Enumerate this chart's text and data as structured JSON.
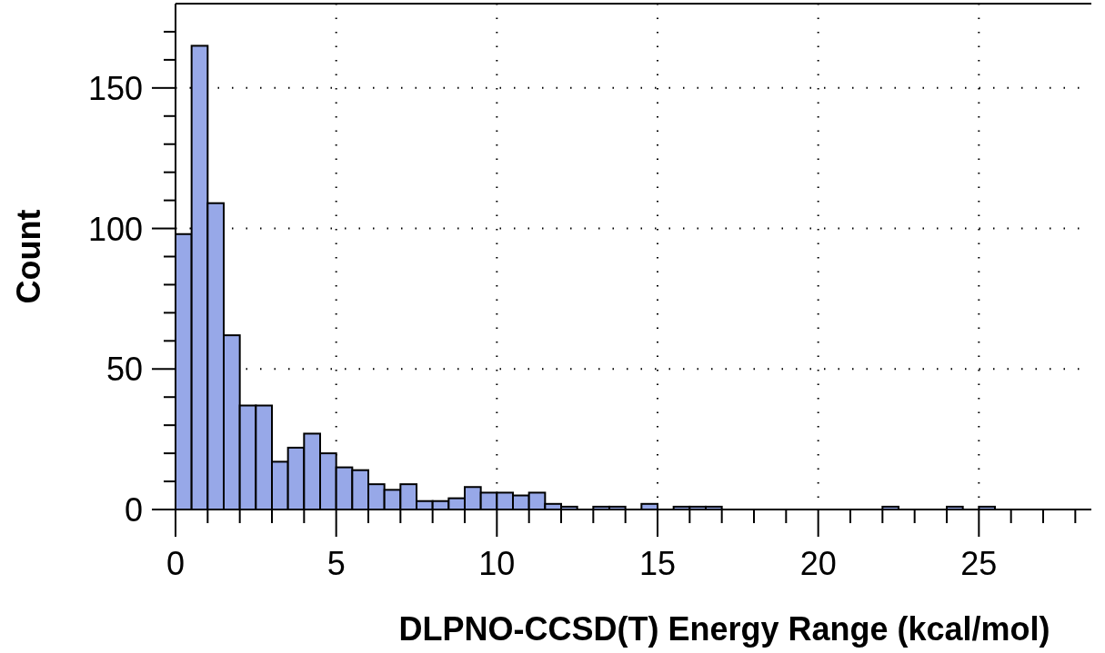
{
  "chart_data": {
    "type": "histogram",
    "xlabel": "DLPNO-CCSD(T) Energy Range (kcal/mol)",
    "ylabel": "Count",
    "color": "#97a8e8",
    "bins": [
      0,
      0.5,
      1,
      1.5,
      2,
      2.5,
      3,
      3.5,
      4,
      4.5,
      5,
      5.5,
      6,
      6.5,
      7,
      7.5,
      8,
      8.5,
      9,
      9.5,
      10,
      10.5,
      11,
      11.5,
      12,
      12.5,
      13,
      13.5,
      14,
      14.5,
      15,
      15.5,
      16,
      16.5,
      17,
      17.5,
      18,
      18.5,
      19,
      19.5,
      20,
      20.5,
      21,
      21.5,
      22,
      22.5,
      23,
      23.5,
      24,
      24.5,
      25,
      25.5,
      26,
      26.5,
      27,
      27.5,
      28,
      28.5
    ],
    "values": [
      98,
      165,
      109,
      62,
      37,
      37,
      17,
      22,
      27,
      20,
      15,
      14,
      9,
      7,
      9,
      3,
      3,
      4,
      8,
      6,
      6,
      5,
      6,
      2,
      1,
      0,
      1,
      1,
      0,
      2,
      0,
      1,
      1,
      1,
      0,
      0,
      0,
      0,
      0,
      0,
      0,
      0,
      0,
      0,
      1,
      0,
      0,
      0,
      1,
      0,
      1,
      0,
      0,
      0,
      0,
      0,
      0
    ],
    "xlim": [
      0,
      28.5
    ],
    "xticks": [
      0,
      {
        "value": 1,
        "label": null
      },
      {
        "value": 2,
        "label": null
      },
      {
        "value": 3,
        "label": null
      },
      {
        "value": 4,
        "label": null
      },
      5,
      {
        "value": 6,
        "label": null
      },
      {
        "value": 7,
        "label": null
      },
      {
        "value": 8,
        "label": null
      },
      {
        "value": 9,
        "label": null
      },
      10,
      {
        "value": 11,
        "label": null
      },
      {
        "value": 12,
        "label": null
      },
      {
        "value": 13,
        "label": null
      },
      {
        "value": 14,
        "label": null
      },
      15,
      {
        "value": 16,
        "label": null
      },
      {
        "value": 17,
        "label": null
      },
      {
        "value": 18,
        "label": null
      },
      {
        "value": 19,
        "label": null
      },
      20,
      {
        "value": 21,
        "label": null
      },
      {
        "value": 22,
        "label": null
      },
      {
        "value": 23,
        "label": null
      },
      {
        "value": 24,
        "label": null
      },
      25,
      {
        "value": 26,
        "label": null
      },
      {
        "value": 27,
        "label": null
      },
      {
        "value": 28,
        "label": null
      }
    ],
    "ylim": [
      0,
      180
    ],
    "yticks": [
      0,
      {
        "value": 10,
        "label": null
      },
      {
        "value": 20,
        "label": null
      },
      {
        "value": 30,
        "label": null
      },
      {
        "value": 40,
        "label": null
      },
      50,
      {
        "value": 60,
        "label": null
      },
      {
        "value": 70,
        "label": null
      },
      {
        "value": 80,
        "label": null
      },
      {
        "value": 90,
        "label": null
      },
      100,
      {
        "value": 110,
        "label": null
      },
      {
        "value": 120,
        "label": null
      },
      {
        "value": 130,
        "label": null
      },
      {
        "value": 140,
        "label": null
      },
      150,
      {
        "value": 160,
        "label": null
      },
      {
        "value": 170,
        "label": null
      }
    ],
    "grid": true
  }
}
